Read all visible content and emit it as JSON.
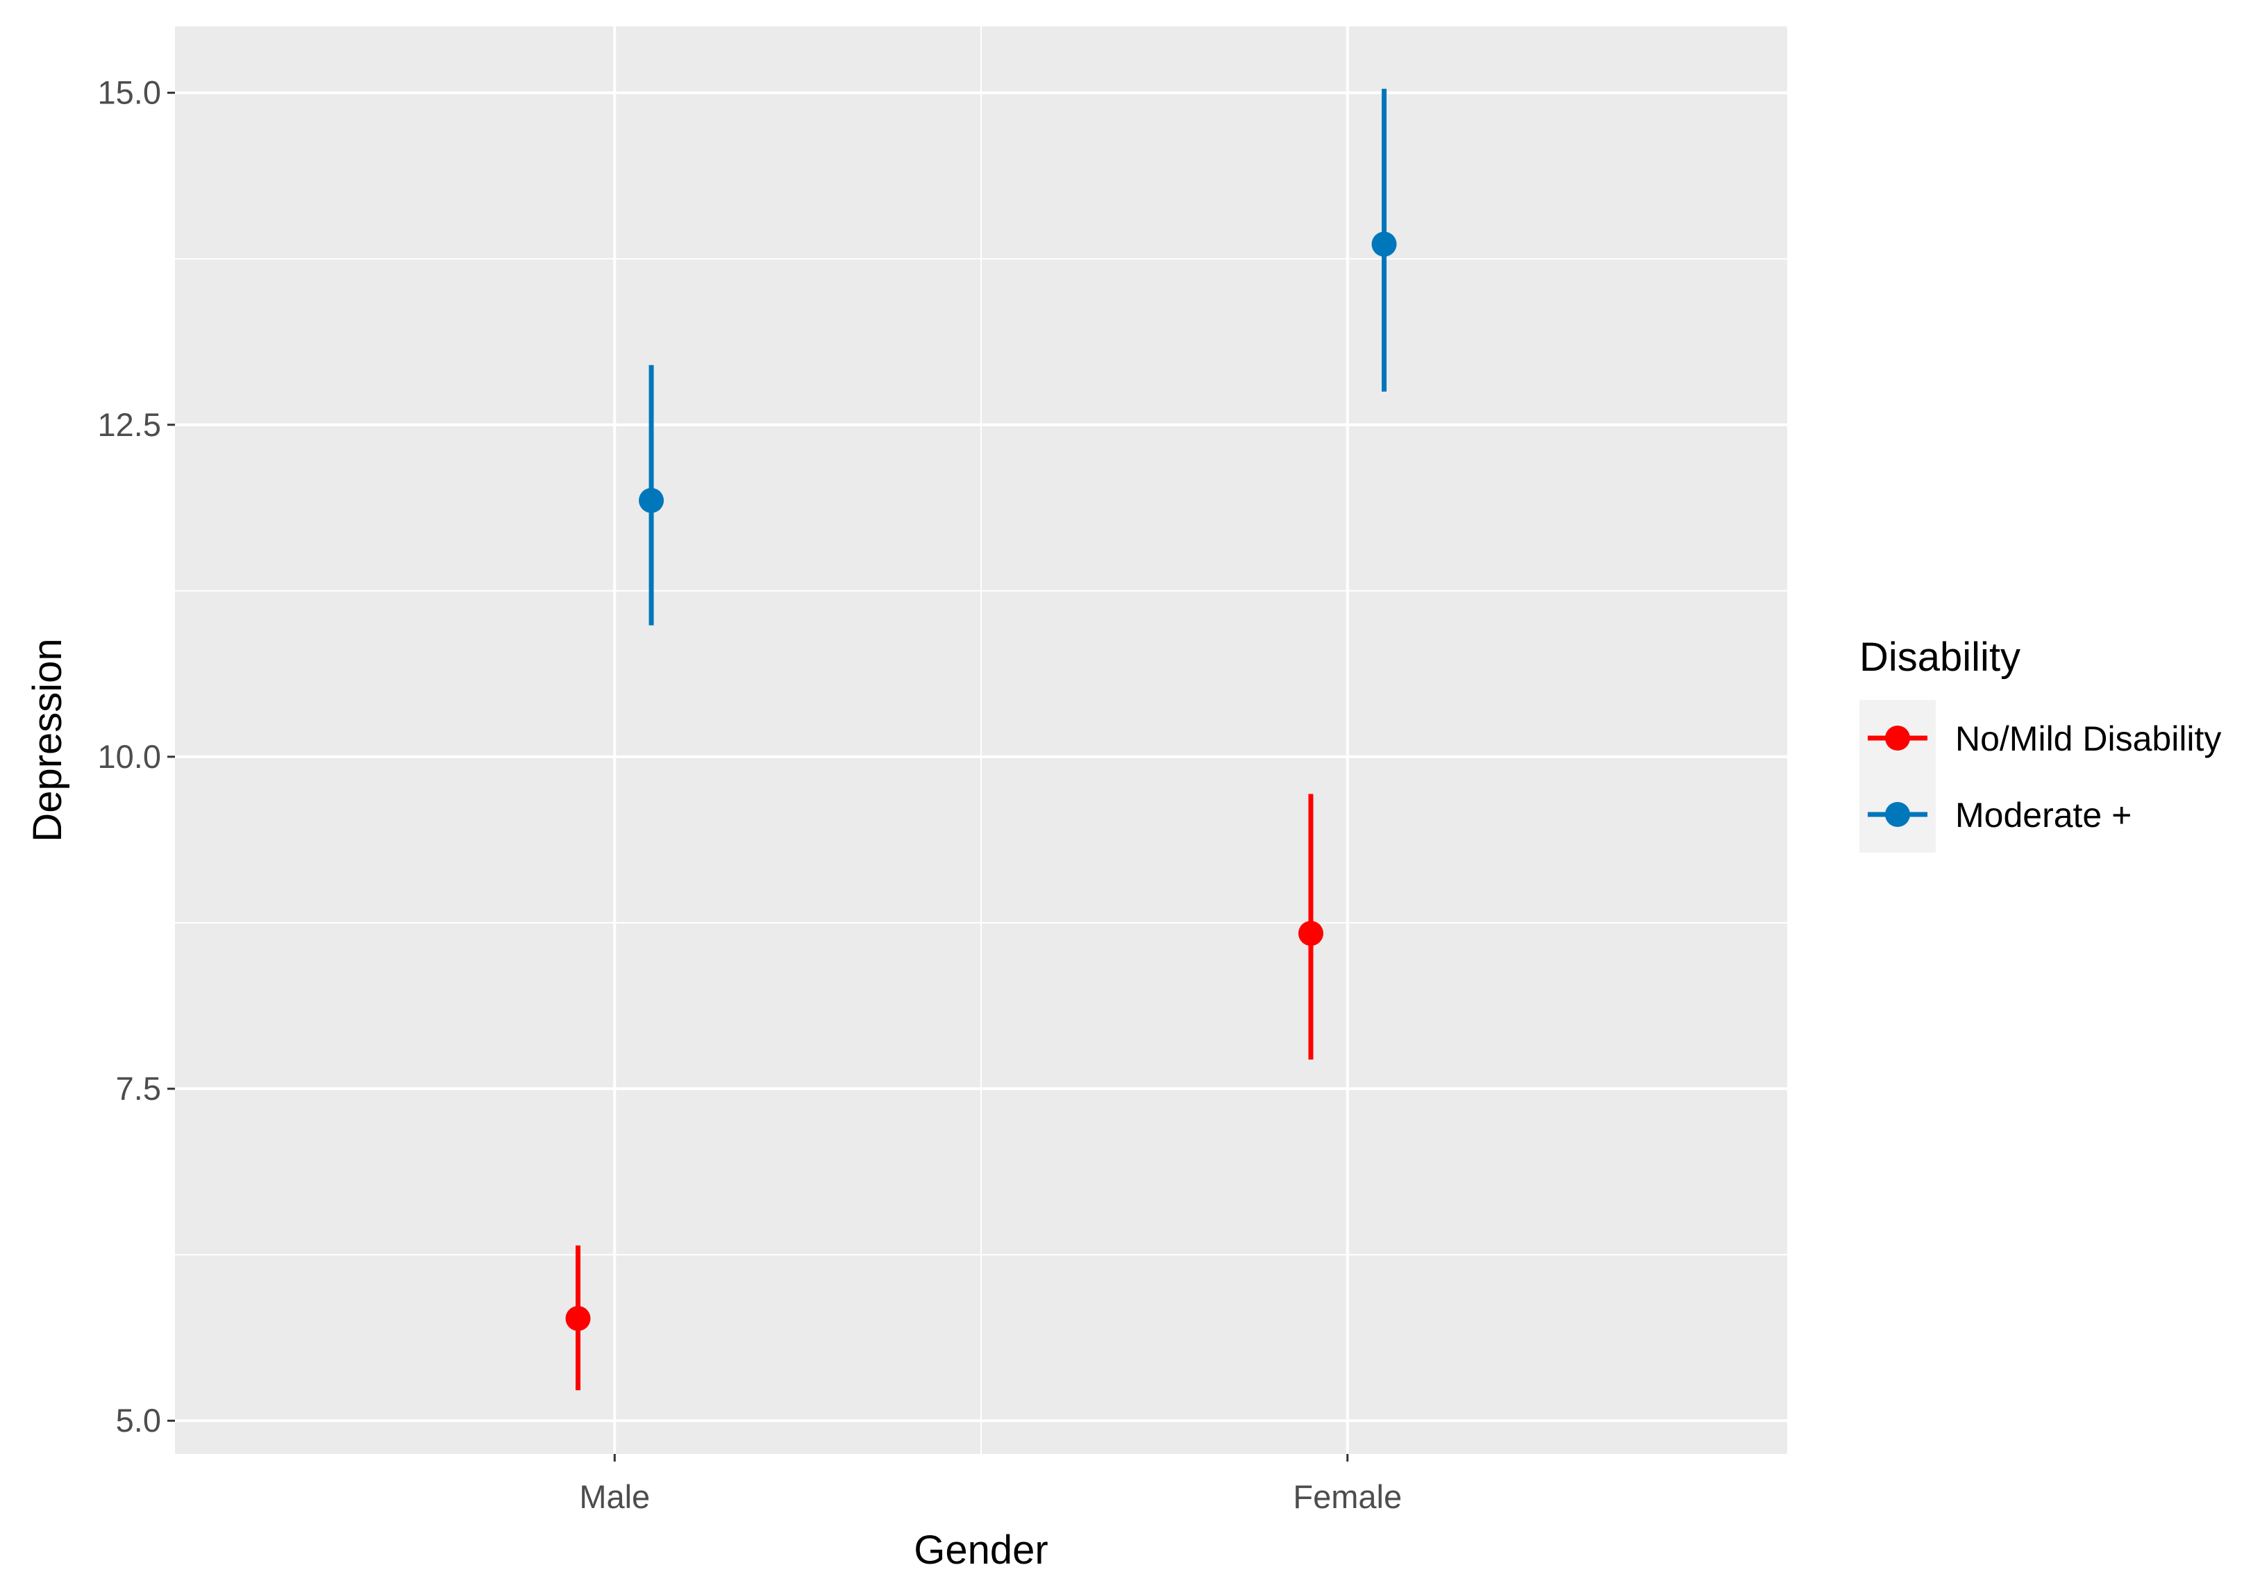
{
  "chart_data": {
    "type": "scatter",
    "subtype": "point-range",
    "title": "",
    "xlabel": "Gender",
    "ylabel": "Depression",
    "categories": [
      "Male",
      "Female"
    ],
    "ylim": [
      4.75,
      15.5
    ],
    "yticks": [
      5.0,
      7.5,
      10.0,
      12.5,
      15.0
    ],
    "ytick_labels": [
      "5.0",
      "7.5",
      "10.0",
      "12.5",
      "15.0"
    ],
    "grid": true,
    "legend": {
      "title": "Disability",
      "position": "right"
    },
    "series": [
      {
        "name": "No/Mild Disability",
        "color": "#ff0000",
        "values": [
          5.77,
          8.67
        ],
        "lower": [
          5.23,
          7.72
        ],
        "upper": [
          6.32,
          9.72
        ]
      },
      {
        "name": "Moderate +",
        "color": "#0077bb",
        "values": [
          11.93,
          13.86
        ],
        "lower": [
          10.99,
          12.75
        ],
        "upper": [
          12.95,
          15.03
        ]
      }
    ]
  }
}
